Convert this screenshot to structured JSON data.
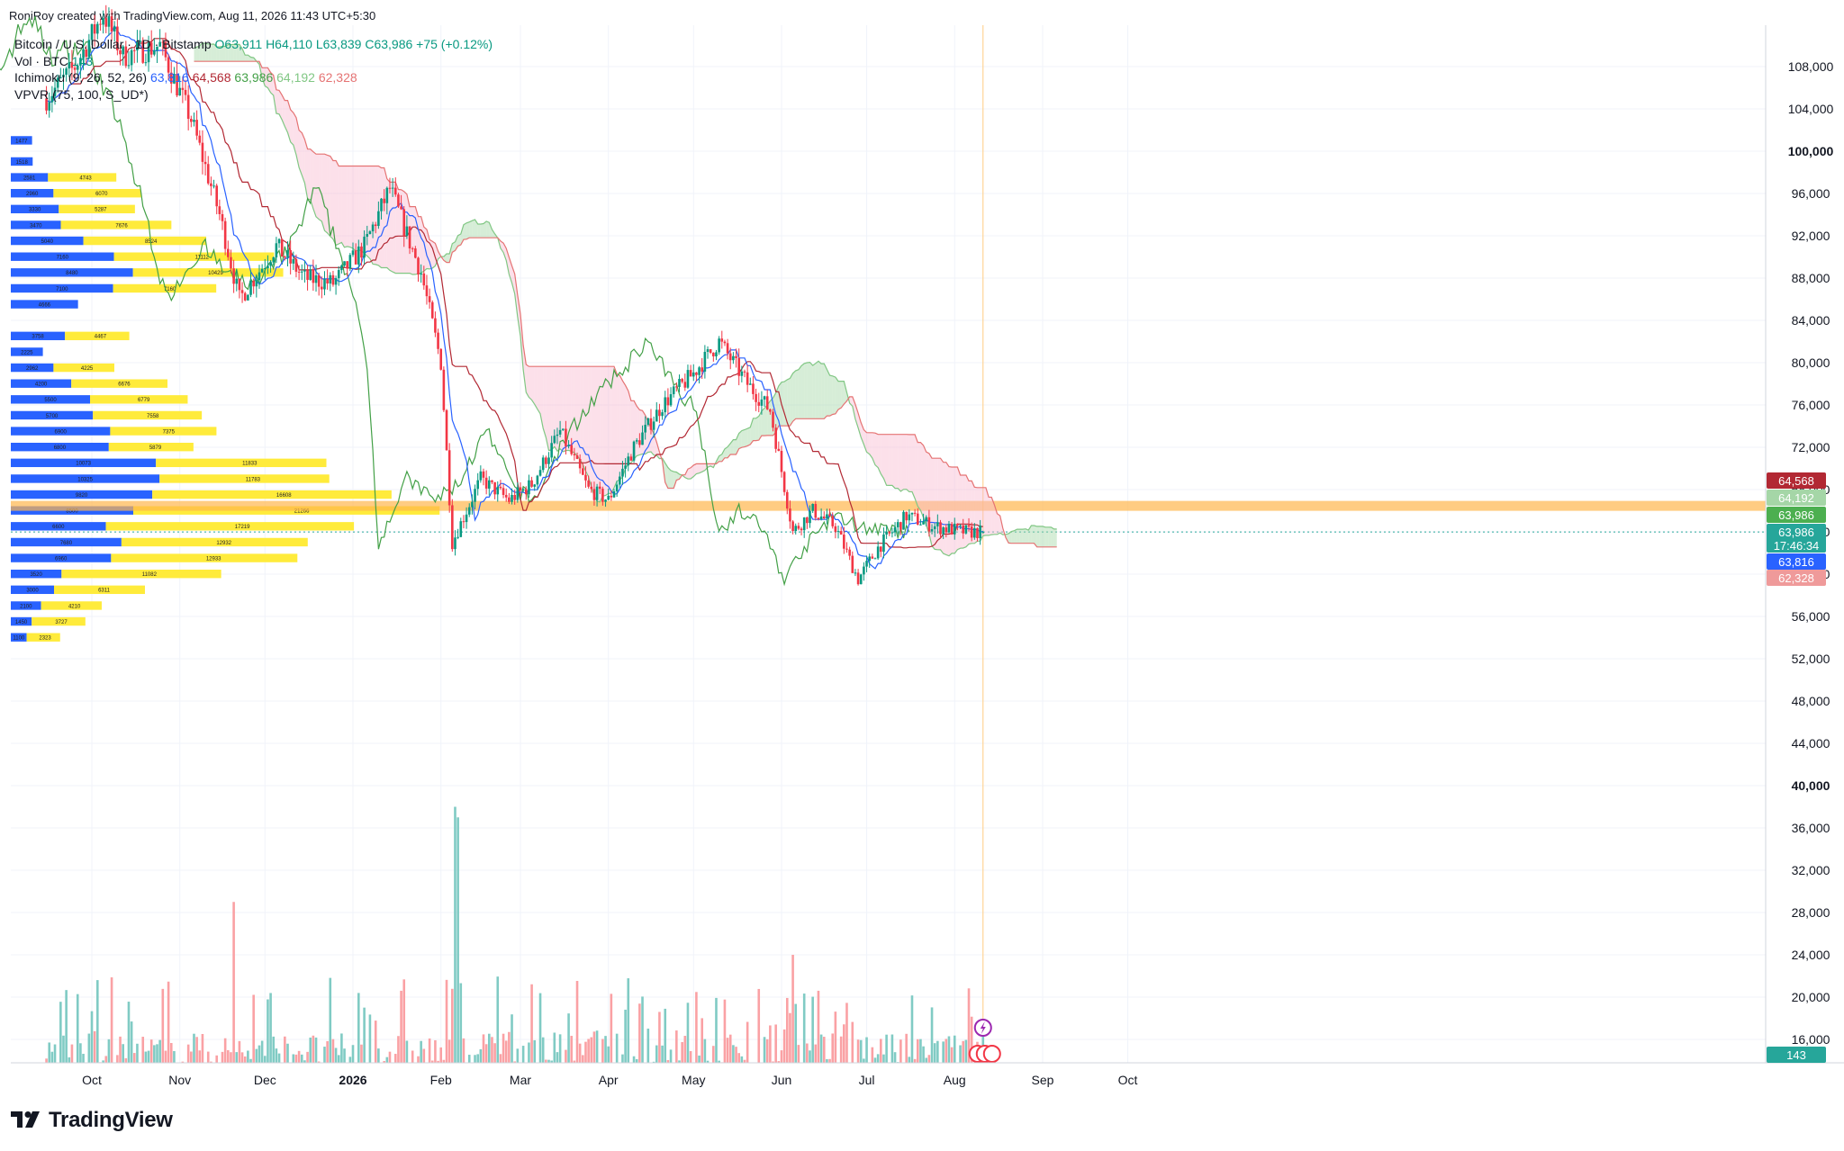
{
  "header": {
    "credit": "RoniRoy created with TradingView.com, Aug 11, 2026 11:43 UTC+5:30"
  },
  "legend": {
    "symbol": "Bitcoin / U.S. Dollar · 1D · Bitstamp",
    "ohlc": "O63,911 H64,110 L63,839 C63,986 +75 (+0.12%)",
    "vol_label": "Vol · BTC",
    "vol_value": "143",
    "ichimoku_label": "Ichimoku (9, 26, 52, 26)",
    "ichimoku_conversion": "63,816",
    "ichimoku_base": "64,568",
    "ichimoku_lagging": "63,986",
    "ichimoku_lead_a": "64,192",
    "ichimoku_lead_b": "62,328",
    "vpvr_label": "VPVR (75, 100, S_UD*)"
  },
  "brand": {
    "name": "TradingView",
    "icon": "tradingview-logo-icon"
  },
  "price_labels": [
    {
      "text": "64,568",
      "color": "#b22833",
      "value": 64568
    },
    {
      "text": "64,192",
      "color": "#a5d6a7",
      "value": 64192,
      "dark_text": true
    },
    {
      "text": "63,986",
      "color": "#4caf50",
      "value": 63986
    },
    {
      "text": "63,986",
      "sub": "17:46:34",
      "color": "#26a69a",
      "value": 63986
    },
    {
      "text": "63,816",
      "color": "#2962ff",
      "value": 63816
    },
    {
      "text": "62,328",
      "color": "#ef9a9a",
      "value": 62328
    }
  ],
  "volume_badge": {
    "text": "143",
    "color": "#26a69a"
  },
  "colors": {
    "up": "#089981",
    "down": "#f23645",
    "conversion": "#2962ff",
    "base": "#b22833",
    "lagging": "#43a047",
    "cloud_bull": "#a5d6a7",
    "cloud_bear": "#f8bbd0",
    "vp_up": "#2962ff",
    "vp_down": "#ffeb3b",
    "poc": "#ffb74d"
  },
  "chart_data": {
    "type": "candlestick",
    "symbol": "Bitcoin / U.S. Dollar",
    "interval": "1D",
    "exchange": "Bitstamp",
    "y_axis": {
      "range": [
        12000,
        111000
      ],
      "ticks": [
        108000,
        104000,
        100000,
        96000,
        92000,
        88000,
        84000,
        80000,
        76000,
        72000,
        68000,
        64000,
        60000,
        56000,
        52000,
        48000,
        44000,
        40000,
        36000,
        32000,
        28000,
        24000,
        20000,
        16000
      ],
      "bold_ticks": [
        100000,
        40000
      ]
    },
    "x_axis": {
      "labels": [
        "Oct",
        "Nov",
        "Dec",
        "2026",
        "Feb",
        "Mar",
        "Apr",
        "May",
        "Jun",
        "Jul",
        "Aug",
        "Sep",
        "Oct"
      ],
      "bold_labels": [
        "2026"
      ]
    },
    "price_path": [
      [
        "2025-09-15",
        105000
      ],
      [
        "2025-09-25",
        108000
      ],
      [
        "2025-10-05",
        113000
      ],
      [
        "2025-10-12",
        109000
      ],
      [
        "2025-10-25",
        110000
      ],
      [
        "2025-11-05",
        103000
      ],
      [
        "2025-11-15",
        94000
      ],
      [
        "2025-11-22",
        86000
      ],
      [
        "2025-12-05",
        91000
      ],
      [
        "2025-12-15",
        88000
      ],
      [
        "2025-12-25",
        87500
      ],
      [
        "2026-01-05",
        91000
      ],
      [
        "2026-01-14",
        96500
      ],
      [
        "2026-01-25",
        88500
      ],
      [
        "2026-02-01",
        80000
      ],
      [
        "2026-02-05",
        63000
      ],
      [
        "2026-02-15",
        69000
      ],
      [
        "2026-02-25",
        67000
      ],
      [
        "2026-03-05",
        68500
      ],
      [
        "2026-03-15",
        73500
      ],
      [
        "2026-03-25",
        68000
      ],
      [
        "2026-04-01",
        67000
      ],
      [
        "2026-04-10",
        72000
      ],
      [
        "2026-04-20",
        76000
      ],
      [
        "2026-05-01",
        79000
      ],
      [
        "2026-05-10",
        82000
      ],
      [
        "2026-05-20",
        78000
      ],
      [
        "2026-05-28",
        75500
      ],
      [
        "2026-06-05",
        64000
      ],
      [
        "2026-06-12",
        66000
      ],
      [
        "2026-06-20",
        64500
      ],
      [
        "2026-06-28",
        59500
      ],
      [
        "2026-07-05",
        62500
      ],
      [
        "2026-07-15",
        65500
      ],
      [
        "2026-07-25",
        64500
      ],
      [
        "2026-08-05",
        64000
      ],
      [
        "2026-08-11",
        63986
      ]
    ],
    "last_bar": {
      "date": "2026-08-11",
      "open": 63911,
      "high": 64110,
      "low": 63839,
      "close": 63986,
      "change": 75,
      "change_pct": 0.12
    },
    "volume": {
      "label": "Vol · BTC",
      "last": 143,
      "spikes": [
        [
          "2025-11-20",
          29000
        ],
        [
          "2026-02-06",
          38000
        ],
        [
          "2026-02-07",
          37000
        ],
        [
          "2026-06-05",
          24000
        ]
      ],
      "typical_range": [
        13000,
        22000
      ]
    },
    "ichimoku": {
      "params": [
        9,
        26,
        52,
        26
      ],
      "conversion": 63816,
      "base": 64568,
      "lagging": 63986,
      "lead_a": 64192,
      "lead_b": 62328
    },
    "volume_profile": {
      "label": "VPVR (75, 100, S_UD*)",
      "point_of_control": 66500,
      "rows": [
        {
          "price": 101000,
          "up": 1477,
          "down": 0
        },
        {
          "price": 99000,
          "up": 1518,
          "down": 0
        },
        {
          "price": 97500,
          "up": 2581,
          "down": 4743
        },
        {
          "price": 96000,
          "up": 2960,
          "down": 6070
        },
        {
          "price": 94500,
          "up": 3330,
          "down": 5287
        },
        {
          "price": 93000,
          "up": 3470,
          "down": 7676
        },
        {
          "price": 91500,
          "up": 5040,
          "down": 8524
        },
        {
          "price": 90000,
          "up": 7160,
          "down": 11112
        },
        {
          "price": 88500,
          "up": 8480,
          "down": 10429
        },
        {
          "price": 87000,
          "up": 7100,
          "down": 7160
        },
        {
          "price": 85500,
          "up": 4666,
          "down": 0
        },
        {
          "price": 82500,
          "up": 3758,
          "down": 4467
        },
        {
          "price": 81000,
          "up": 2225,
          "down": 0
        },
        {
          "price": 79500,
          "up": 2962,
          "down": 4225
        },
        {
          "price": 78000,
          "up": 4200,
          "down": 6676
        },
        {
          "price": 76500,
          "up": 5500,
          "down": 6779
        },
        {
          "price": 75000,
          "up": 5700,
          "down": 7558
        },
        {
          "price": 73500,
          "up": 6900,
          "down": 7375
        },
        {
          "price": 72000,
          "up": 6800,
          "down": 5879
        },
        {
          "price": 70500,
          "up": 10073,
          "down": 11833
        },
        {
          "price": 69000,
          "up": 10325,
          "down": 11783
        },
        {
          "price": 67500,
          "up": 9820,
          "down": 16608
        },
        {
          "price": 66000,
          "up": 8500,
          "down": 21266
        },
        {
          "price": 64500,
          "up": 6600,
          "down": 17219
        },
        {
          "price": 63000,
          "up": 7680,
          "down": 12932
        },
        {
          "price": 61500,
          "up": 6960,
          "down": 12933
        },
        {
          "price": 60000,
          "up": 3520,
          "down": 11082
        },
        {
          "price": 58500,
          "up": 3000,
          "down": 6311
        },
        {
          "price": 57000,
          "up": 2100,
          "down": 4210
        },
        {
          "price": 55500,
          "up": 1450,
          "down": 3727
        },
        {
          "price": 54000,
          "up": 1100,
          "down": 2323
        }
      ]
    }
  }
}
